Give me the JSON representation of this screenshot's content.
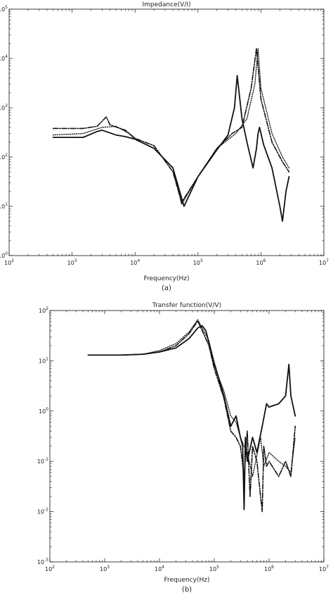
{
  "chart_data": [
    {
      "type": "line",
      "title": "Impedance(V/I)",
      "xlabel": "Frequency(Hz)",
      "ylabel": "",
      "caption": "(a)",
      "xscale": "log",
      "yscale": "log",
      "xlim": [
        100,
        10000000
      ],
      "ylim": [
        1,
        100000
      ],
      "x_ticks": [
        {
          "value": 100,
          "base": "10",
          "exp": "2"
        },
        {
          "value": 1000,
          "base": "10",
          "exp": "3"
        },
        {
          "value": 10000,
          "base": "10",
          "exp": "4"
        },
        {
          "value": 100000,
          "base": "10",
          "exp": "5"
        },
        {
          "value": 1000000,
          "base": "10",
          "exp": "6"
        },
        {
          "value": 10000000,
          "base": "10",
          "exp": "7"
        }
      ],
      "y_ticks": [
        {
          "value": 1,
          "base": "10",
          "exp": "0"
        },
        {
          "value": 10,
          "base": "10",
          "exp": "1"
        },
        {
          "value": 100,
          "base": "10",
          "exp": "2"
        },
        {
          "value": 1000,
          "base": "10",
          "exp": "3"
        },
        {
          "value": 10000,
          "base": "10",
          "exp": "4"
        },
        {
          "value": 100000,
          "base": "10",
          "exp": "5"
        }
      ],
      "grid": false,
      "series": [
        {
          "style": "solid",
          "x": [
            500,
            1500,
            2500,
            3000,
            5000,
            7000,
            10000,
            20000,
            40000,
            60000,
            100000,
            200000,
            300000,
            380000,
            420000,
            500000,
            600000,
            750000,
            850000,
            900000,
            950000,
            1100000,
            1500000,
            2000000,
            2200000,
            2500000,
            2800000
          ],
          "y": [
            250,
            250,
            330,
            350,
            280,
            260,
            230,
            150,
            60,
            10,
            40,
            140,
            280,
            1000,
            4500,
            600,
            200,
            60,
            150,
            300,
            400,
            180,
            60,
            10,
            5,
            20,
            40
          ]
        },
        {
          "style": "dashdot",
          "x": [
            500,
            1500,
            2500,
            3500,
            4000,
            7000,
            10000,
            20000,
            40000,
            55000,
            100000,
            200000,
            350000,
            500000,
            700000,
            800000,
            850000,
            1000000,
            1500000,
            2200000,
            2800000
          ],
          "y": [
            380,
            380,
            420,
            650,
            450,
            350,
            240,
            170,
            50,
            12,
            40,
            150,
            300,
            400,
            2500,
            9000,
            16000,
            1500,
            200,
            80,
            50
          ]
        },
        {
          "style": "dotted",
          "x": [
            500,
            1500,
            3000,
            5000,
            8000,
            10000,
            20000,
            40000,
            55000,
            100000,
            200000,
            400000,
            600000,
            800000,
            900000,
            1000000,
            1500000,
            2200000,
            2800000
          ],
          "y": [
            280,
            300,
            400,
            420,
            300,
            230,
            150,
            60,
            11,
            40,
            150,
            300,
            600,
            3000,
            16000,
            2500,
            300,
            100,
            60
          ]
        }
      ]
    },
    {
      "type": "line",
      "title": "Transfer function(V/V)",
      "xlabel": "Frequency(Hz)",
      "ylabel": "",
      "caption": "(b)",
      "xscale": "log",
      "yscale": "log",
      "xlim": [
        100,
        10000000
      ],
      "ylim": [
        0.001,
        100
      ],
      "x_ticks": [
        {
          "value": 100,
          "base": "10",
          "exp": "2"
        },
        {
          "value": 1000,
          "base": "10",
          "exp": "3"
        },
        {
          "value": 10000,
          "base": "10",
          "exp": "4"
        },
        {
          "value": 100000,
          "base": "10",
          "exp": "5"
        },
        {
          "value": 1000000,
          "base": "10",
          "exp": "6"
        },
        {
          "value": 10000000,
          "base": "10",
          "exp": "7"
        }
      ],
      "y_ticks": [
        {
          "value": 0.001,
          "base": "10",
          "exp": "-3"
        },
        {
          "value": 0.01,
          "base": "10",
          "exp": "-2"
        },
        {
          "value": 0.1,
          "base": "10",
          "exp": "-1"
        },
        {
          "value": 1,
          "base": "10",
          "exp": "0"
        },
        {
          "value": 10,
          "base": "10",
          "exp": "1"
        },
        {
          "value": 100,
          "base": "10",
          "exp": "2"
        }
      ],
      "grid": false,
      "series": [
        {
          "style": "solid",
          "x": [
            500,
            2000,
            5000,
            10000,
            20000,
            35000,
            50000,
            60000,
            70000,
            100000,
            150000,
            200000,
            250000,
            300000,
            330000,
            350000,
            370000,
            400000,
            500000,
            600000,
            750000,
            900000,
            1000000,
            1500000,
            2000000,
            2300000,
            2500000,
            3000000
          ],
          "y": [
            13,
            13,
            13.5,
            15,
            18,
            28,
            45,
            50,
            40,
            9,
            2,
            0.5,
            0.8,
            0.3,
            0.2,
            0.011,
            0.3,
            0.1,
            0.3,
            0.15,
            0.5,
            1.4,
            1.2,
            1.4,
            2,
            8.5,
            2,
            0.8
          ]
        },
        {
          "style": "dashdot",
          "x": [
            500,
            2000,
            5000,
            10000,
            20000,
            35000,
            50000,
            60000,
            80000,
            100000,
            150000,
            200000,
            250000,
            300000,
            350000,
            400000,
            450000,
            500000,
            600000,
            700000,
            750000,
            800000,
            900000,
            1000000,
            1500000,
            2000000,
            2500000,
            3000000
          ],
          "y": [
            13,
            13,
            13.5,
            15,
            20,
            35,
            62,
            40,
            20,
            7,
            1.8,
            0.4,
            0.3,
            0.2,
            0.05,
            0.4,
            0.02,
            0.2,
            0.1,
            0.02,
            0.01,
            0.2,
            0.08,
            0.1,
            0.05,
            0.1,
            0.05,
            0.5
          ]
        },
        {
          "style": "dotted",
          "x": [
            500,
            2000,
            5000,
            10000,
            20000,
            35000,
            50000,
            60000,
            80000,
            100000,
            150000,
            200000,
            250000,
            300000,
            350000,
            400000,
            500000,
            700000,
            800000,
            1000000,
            1500000,
            2000000,
            2500000,
            3000000
          ],
          "y": [
            13,
            13,
            13.5,
            16,
            22,
            38,
            66,
            45,
            25,
            8,
            2.5,
            0.8,
            0.6,
            0.3,
            0.2,
            0.15,
            0.05,
            0.3,
            0.08,
            0.15,
            0.1,
            0.08,
            0.06,
            0.3
          ]
        }
      ]
    }
  ]
}
